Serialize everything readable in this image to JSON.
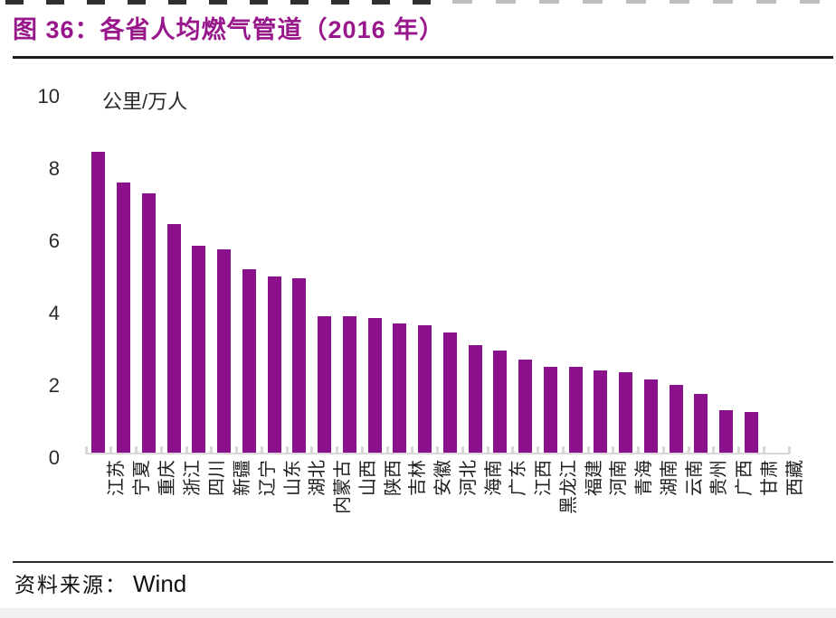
{
  "figure": {
    "title": "图 36：各省人均燃气管道（2016 年）",
    "unit_label": "公里/万人",
    "source_label": "资料来源：",
    "source_value": "Wind"
  },
  "colors": {
    "title": "#98188C",
    "bar": "#8B108C",
    "axis": "#D8D8D8",
    "tick_text": "#2B2B2B",
    "category_text": "#1E1E1E"
  },
  "chart_data": {
    "type": "bar",
    "title": "各省人均燃气管道（2016 年）",
    "figure_number": "图 36",
    "ylabel": "公里/万人",
    "xlabel": "",
    "ylim": [
      0,
      10
    ],
    "yticks": [
      0,
      2,
      4,
      6,
      8,
      10
    ],
    "grid": false,
    "legend_position": "none",
    "bar_color": "#8B108C",
    "categories": [
      "江苏",
      "宁夏",
      "重庆",
      "浙江",
      "四川",
      "新疆",
      "辽宁",
      "山东",
      "湖北",
      "内蒙古",
      "山西",
      "陕西",
      "吉林",
      "安徽",
      "河北",
      "海南",
      "广东",
      "江西",
      "黑龙江",
      "福建",
      "河南",
      "青海",
      "湖南",
      "云南",
      "贵州",
      "广西",
      "甘肃",
      "西藏"
    ],
    "values": [
      8.35,
      7.5,
      7.2,
      6.35,
      5.75,
      5.65,
      5.1,
      4.9,
      4.85,
      3.8,
      3.8,
      3.75,
      3.6,
      3.55,
      3.35,
      3.0,
      2.85,
      2.6,
      2.4,
      2.4,
      2.3,
      2.25,
      2.05,
      1.9,
      1.65,
      1.2,
      1.15,
      0.02
    ],
    "source": "Wind"
  }
}
